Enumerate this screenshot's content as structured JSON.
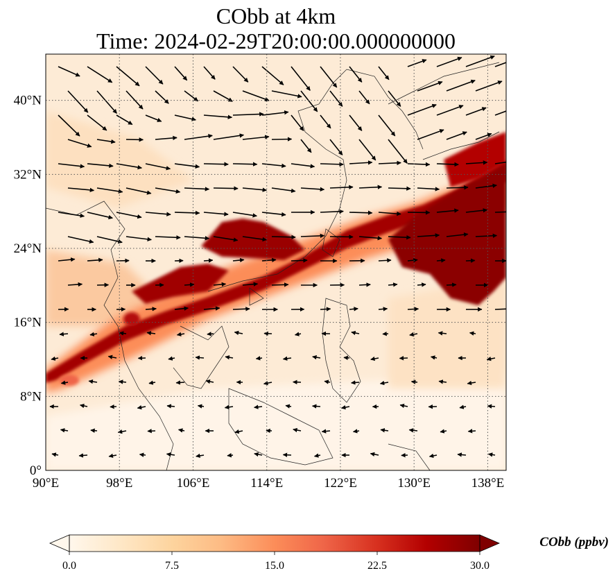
{
  "title": {
    "line1": "CObb at 4km",
    "line2": "Time: 2024-02-29T20:00:00.000000000"
  },
  "map": {
    "lon_range": [
      90,
      140
    ],
    "lat_range": [
      0,
      45
    ],
    "lon_ticks": [
      {
        "value": 90,
        "label": "90°E"
      },
      {
        "value": 98,
        "label": "98°E"
      },
      {
        "value": 106,
        "label": "106°E"
      },
      {
        "value": 114,
        "label": "114°E"
      },
      {
        "value": 122,
        "label": "122°E"
      },
      {
        "value": 130,
        "label": "130°E"
      },
      {
        "value": 138,
        "label": "138°E"
      }
    ],
    "lat_ticks": [
      {
        "value": 0,
        "label": "0°"
      },
      {
        "value": 8,
        "label": "8°N"
      },
      {
        "value": 16,
        "label": "16°N"
      },
      {
        "value": 24,
        "label": "24°N"
      },
      {
        "value": 32,
        "label": "32°N"
      },
      {
        "value": 40,
        "label": "40°N"
      }
    ],
    "gridlines": true
  },
  "colorbar": {
    "label": "CObb (ppbv)",
    "min": 0.0,
    "max": 30.0,
    "extend": "both",
    "ticks": [
      {
        "value": 0,
        "label": "0.0"
      },
      {
        "value": 7.5,
        "label": "7.5"
      },
      {
        "value": 15,
        "label": "15.0"
      },
      {
        "value": 22.5,
        "label": "22.5"
      },
      {
        "value": 30,
        "label": "30.0"
      }
    ],
    "colors": [
      "#fff7ec",
      "#fee8c8",
      "#fdd49e",
      "#fdbb84",
      "#fc8d59",
      "#ef6548",
      "#d7301f",
      "#b30000",
      "#7f0000"
    ]
  }
}
